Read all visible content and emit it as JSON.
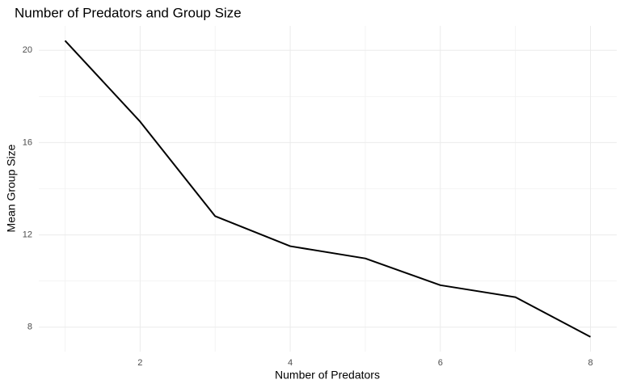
{
  "chart_data": {
    "type": "line",
    "title": "Number of Predators and Group Size",
    "x_label": "Number of Predators",
    "y_label": "Mean Group Size",
    "x": [
      1,
      2,
      3,
      4,
      5,
      6,
      7,
      8
    ],
    "series": [
      {
        "name": "Mean Group Size",
        "color": "#000000",
        "values": [
          20.42,
          16.91,
          12.81,
          11.51,
          10.98,
          9.82,
          9.3,
          7.58
        ]
      }
    ],
    "xlim": [
      0.65,
      8.35
    ],
    "ylim": [
      6.94,
      21.06
    ],
    "xticks": [
      2,
      4,
      6,
      8
    ],
    "yticks": [
      8,
      12,
      16,
      20
    ],
    "x_minor_grid": [
      1,
      3,
      5,
      7
    ],
    "y_minor_grid": [
      10,
      14,
      18
    ],
    "grid": true,
    "legend": false
  }
}
